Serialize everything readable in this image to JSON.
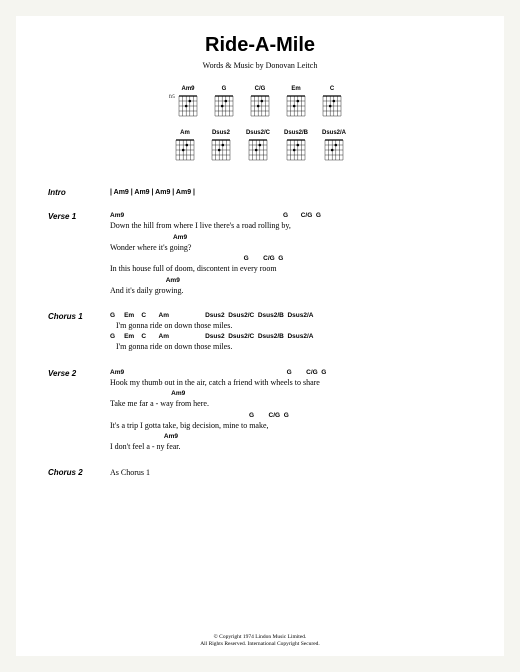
{
  "title": "Ride-A-Mile",
  "byline": "Words & Music by Donovan Leitch",
  "chord_diagrams": {
    "row1": [
      {
        "name": "Am9",
        "fret": "fr5"
      },
      {
        "name": "G",
        "fret": ""
      },
      {
        "name": "C/G",
        "fret": ""
      },
      {
        "name": "Em",
        "fret": ""
      },
      {
        "name": "C",
        "fret": ""
      }
    ],
    "row2": [
      {
        "name": "Am",
        "fret": ""
      },
      {
        "name": "Dsus2",
        "fret": ""
      },
      {
        "name": "Dsus2/C",
        "fret": ""
      },
      {
        "name": "Dsus2/B",
        "fret": ""
      },
      {
        "name": "Dsus2/A",
        "fret": ""
      }
    ]
  },
  "sections": [
    {
      "label": "Intro",
      "type": "intro",
      "text": "| Am9  | Am9  | Am9  | Am9  |"
    },
    {
      "label": "Verse 1",
      "type": "verse",
      "lines": [
        {
          "chords": "Am9                                                                                        G       C/G  G",
          "lyric": "Down the hill from where I live there's a road rolling by,"
        },
        {
          "chords": "                                   Am9",
          "lyric": "Wonder where it's going?"
        },
        {
          "chords": "                                                                          G        C/G  G",
          "lyric": "In this house full of doom, discontent in every room"
        },
        {
          "chords": "                               Am9",
          "lyric": "And it's daily growing."
        }
      ]
    },
    {
      "label": "Chorus 1",
      "type": "chorus",
      "lines": [
        {
          "chords": "G     Em    C       Am                    Dsus2  Dsus2/C  Dsus2/B  Dsus2/A",
          "lyric": "   I'm gonna ride on down those miles."
        },
        {
          "chords": "G     Em    C       Am                    Dsus2  Dsus2/C  Dsus2/B  Dsus2/A",
          "lyric": "   I'm gonna ride on down those miles."
        }
      ]
    },
    {
      "label": "Verse 2",
      "type": "verse",
      "lines": [
        {
          "chords": "Am9                                                                                          G        C/G  G",
          "lyric": "Hook my thumb out in the air, catch a friend with wheels to share"
        },
        {
          "chords": "                                  Am9",
          "lyric": "Take me far a - way from here."
        },
        {
          "chords": "                                                                             G        C/G  G",
          "lyric": "It's a trip I gotta take, big decision, mine to make,"
        },
        {
          "chords": "                              Am9",
          "lyric": "I don't feel a - ny fear."
        }
      ]
    },
    {
      "label": "Chorus 2",
      "type": "plain",
      "text": "As Chorus 1"
    }
  ],
  "copyright": {
    "line1": "© Copyright 1974 Lindon Music Limited.",
    "line2": "All Rights Reserved. International Copyright Secured."
  },
  "colors": {
    "page_bg": "#f5f5f0",
    "sheet_bg": "#ffffff",
    "text": "#000000"
  }
}
